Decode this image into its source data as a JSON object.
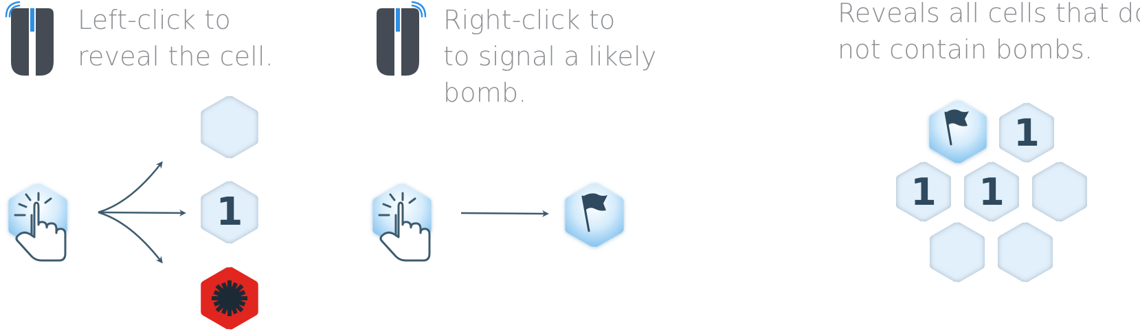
{
  "instructions": {
    "left_click": {
      "icon": "mouse-left-button-icon",
      "lines": [
        "Left-click to",
        "reveal the cell."
      ]
    },
    "right_click": {
      "icon": "mouse-right-button-icon",
      "lines": [
        "Right-click to",
        "to signal a likely",
        "bomb."
      ]
    },
    "result": {
      "lines": [
        "Reveals all cells that do",
        "not contain bombs."
      ]
    }
  },
  "reveal_outcomes": [
    "empty-cell",
    "1",
    "bomb-cell"
  ],
  "flag_demo": {
    "from": "click-cell",
    "to": "flag-cell"
  },
  "board": {
    "row1": [
      "flag",
      "1"
    ],
    "row2": [
      "1",
      "1",
      ""
    ],
    "row3": [
      "",
      ""
    ]
  },
  "colors": {
    "text": "#8c8f93",
    "mouse_body": "#454b55",
    "mouse_accent": "#2e8fe3",
    "arrow": "#3d5b6e",
    "cell_light": "#e2f0fb",
    "cell_highlight": "#9ed2f4",
    "number": "#2f4a5e",
    "bomb_cell": "#e0261f",
    "bomb": "#1c2a36"
  }
}
